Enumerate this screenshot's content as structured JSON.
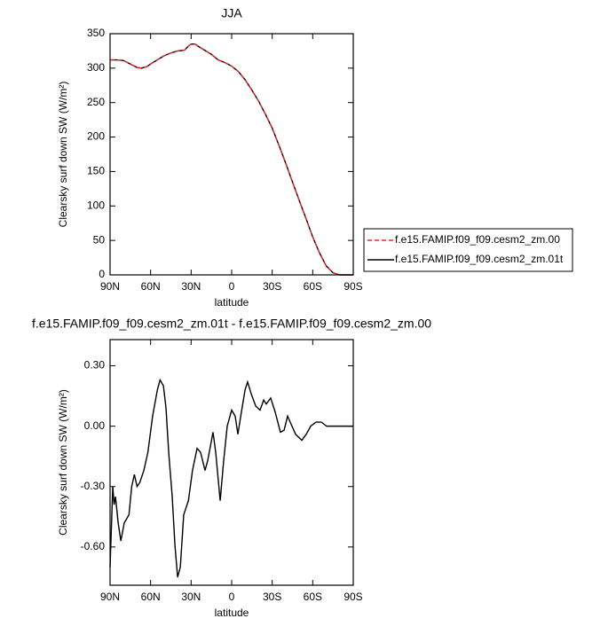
{
  "chart_data": [
    {
      "type": "line",
      "title": "JJA",
      "x_label": "latitude",
      "y_label": "Clearsky surf down SW (W/m²)",
      "xlim": [
        90,
        -90
      ],
      "xticks": [
        {
          "value": 90,
          "label": "90N"
        },
        {
          "value": 60,
          "label": "60N"
        },
        {
          "value": 30,
          "label": "30N"
        },
        0,
        {
          "value": -30,
          "label": "30S"
        },
        {
          "value": -60,
          "label": "60S"
        },
        {
          "value": -90,
          "label": "90S"
        }
      ],
      "ylim": [
        0,
        350
      ],
      "yticks": [
        0,
        50,
        100,
        150,
        200,
        250,
        300,
        350
      ],
      "x": [
        90,
        85,
        80,
        75,
        70,
        67,
        63,
        60,
        55,
        50,
        45,
        40,
        35,
        32,
        30,
        27,
        25,
        20,
        15,
        10,
        5,
        0,
        -5,
        -10,
        -15,
        -20,
        -25,
        -30,
        -35,
        -40,
        -45,
        -50,
        -55,
        -60,
        -65,
        -70,
        -75,
        -80,
        -85,
        -90
      ],
      "series": [
        {
          "name": "f.e15.FAMIP.f09_f09.cesm2_zm.00",
          "color": "#e8262a",
          "dashed": true,
          "values": [
            312,
            312,
            311,
            306,
            301,
            300,
            302,
            306,
            312,
            318,
            322,
            325,
            326,
            332,
            335,
            335,
            332,
            326,
            320,
            312,
            308,
            303,
            295,
            283,
            268,
            252,
            233,
            213,
            188,
            162,
            135,
            108,
            82,
            55,
            32,
            13,
            3,
            0,
            0,
            0
          ]
        },
        {
          "name": "f.e15.FAMIP.f09_f09.cesm2_zm.01t",
          "color": "#000000",
          "dashed": false,
          "values": [
            312,
            312,
            311,
            306,
            301,
            300,
            302,
            306,
            312,
            318,
            322,
            325,
            326,
            332,
            335,
            335,
            332,
            326,
            320,
            312,
            308,
            303,
            295,
            283,
            268,
            252,
            233,
            213,
            188,
            162,
            135,
            108,
            82,
            55,
            32,
            13,
            3,
            0,
            0,
            0
          ]
        }
      ]
    },
    {
      "type": "line",
      "title": "f.e15.FAMIP.f09_f09.cesm2_zm.01t - f.e15.FAMIP.f09_f09.cesm2_zm.00",
      "x_label": "latitude",
      "y_label": "Clearsky surf down SW (W/m²)",
      "xlim": [
        90,
        -90
      ],
      "xticks": [
        {
          "value": 90,
          "label": "90N"
        },
        {
          "value": 60,
          "label": "60N"
        },
        {
          "value": 30,
          "label": "30N"
        },
        0,
        {
          "value": -30,
          "label": "30S"
        },
        {
          "value": -60,
          "label": "60S"
        },
        {
          "value": -90,
          "label": "90S"
        }
      ],
      "ylim": [
        -0.79,
        0.43
      ],
      "yticks": [
        {
          "value": -0.6,
          "label": "-0.60"
        },
        {
          "value": -0.3,
          "label": "-0.30"
        },
        {
          "value": 0,
          "label": "0.00"
        },
        {
          "value": 0.3,
          "label": "0.30"
        }
      ],
      "x": [
        90,
        88,
        87,
        86,
        84,
        82,
        79.5,
        76,
        74,
        72,
        70,
        68,
        65,
        62,
        58.5,
        55,
        53,
        50.5,
        48.6,
        46.6,
        44,
        42,
        40,
        38,
        35.5,
        32,
        29,
        25.6,
        23,
        19.7,
        17.7,
        13.8,
        11.8,
        8.5,
        5.9,
        3.3,
        0,
        -2.6,
        -4.6,
        -7.2,
        -9.9,
        -11.8,
        -14.5,
        -17.8,
        -21,
        -23.7,
        -25.6,
        -28.9,
        -32.2,
        -36.1,
        -38.8,
        -41.4,
        -44,
        -47.3,
        -51.9,
        -55.2,
        -58.5,
        -62.4,
        -66.4,
        -70.3,
        -74.9,
        -90
      ],
      "color": "#000000",
      "values": [
        -0.7,
        -0.3,
        -0.39,
        -0.35,
        -0.48,
        -0.57,
        -0.48,
        -0.44,
        -0.3,
        -0.24,
        -0.3,
        -0.28,
        -0.22,
        -0.13,
        0.05,
        0.18,
        0.23,
        0.2,
        0.09,
        -0.13,
        -0.35,
        -0.59,
        -0.75,
        -0.7,
        -0.44,
        -0.37,
        -0.22,
        -0.11,
        -0.13,
        -0.22,
        -0.17,
        -0.03,
        -0.13,
        -0.37,
        -0.17,
        0,
        0.08,
        0.05,
        -0.04,
        0.07,
        0.18,
        0.22,
        0.16,
        0.1,
        0.08,
        0.13,
        0.11,
        0.14,
        0.07,
        -0.03,
        -0.02,
        0.05,
        0.01,
        -0.04,
        -0.07,
        -0.04,
        0,
        0.02,
        0.02,
        0,
        0,
        0
      ]
    }
  ]
}
